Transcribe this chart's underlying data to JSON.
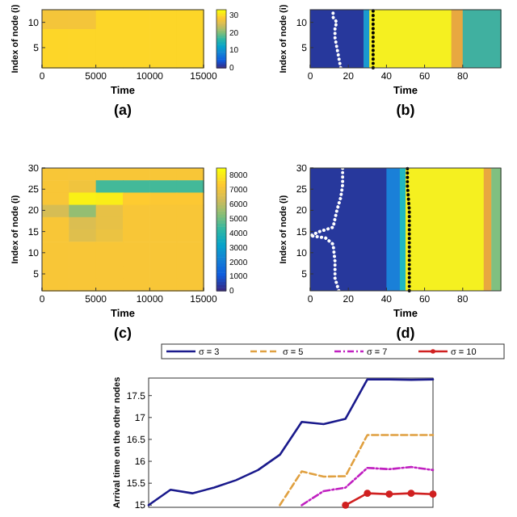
{
  "chart_data": [
    {
      "type": "heatmap",
      "xlabel": "Time",
      "ylabel": "Index of node (i)",
      "annotations": [
        "(a)"
      ],
      "x": [
        1250,
        3750,
        6250,
        8750,
        11250,
        13750
      ],
      "y": [
        10.583,
        6.75,
        2.917
      ],
      "xlim": [
        0,
        15000
      ],
      "xticks": [
        0,
        5000,
        10000,
        15000
      ],
      "ylim": [
        1,
        12.5
      ],
      "yticks": [
        5,
        10
      ],
      "clim": [
        0,
        33
      ],
      "cticks": [
        0,
        10,
        20,
        30
      ],
      "cells": [
        [
          28,
          28,
          30,
          30,
          30,
          30
        ],
        [
          30,
          30,
          30,
          30,
          30,
          30
        ],
        [
          30,
          30,
          30,
          30,
          30,
          30
        ]
      ]
    },
    {
      "type": "line",
      "xlabel": "Time",
      "ylabel": "Index of node (i)",
      "annotations": [
        "(b)"
      ],
      "xlim": [
        0,
        100
      ],
      "xticks": [
        0,
        20,
        40,
        60,
        80
      ],
      "ylim": [
        1,
        12.5
      ],
      "yticks": [
        5,
        10
      ],
      "bands": [
        {
          "axis": "x",
          "from": 0,
          "to": 28,
          "color": "#27389c"
        },
        {
          "axis": "x",
          "from": 28,
          "to": 31,
          "color": "#1a9ad0"
        },
        {
          "axis": "x",
          "from": 31,
          "to": 74,
          "color": "#f5f020"
        },
        {
          "axis": "x",
          "from": 74,
          "to": 80,
          "color": "#e8a840"
        },
        {
          "axis": "x",
          "from": 80,
          "to": 100,
          "color": "#40b0a0"
        }
      ],
      "series": [
        {
          "type": "line",
          "color": "#ffffff",
          "line_style": "dotted",
          "x": [
            16,
            15,
            14,
            13,
            13,
            14,
            12,
            12,
            12
          ],
          "values": [
            1,
            3,
            5,
            7,
            9,
            10,
            11,
            12,
            12.5
          ]
        },
        {
          "type": "line",
          "color": "#000000",
          "line_style": "dotted",
          "x": [
            33,
            33
          ],
          "values": [
            1,
            12.5
          ]
        }
      ]
    },
    {
      "type": "heatmap",
      "xlabel": "Time",
      "ylabel": "Index of node (i)",
      "annotations": [
        "(c)"
      ],
      "x": [
        1250,
        3750,
        6250,
        8750,
        11250,
        13750
      ],
      "y": [
        28.55,
        25.65,
        22.75,
        19.85,
        16.95,
        14.05,
        11.15,
        8.25,
        5.35,
        2.45
      ],
      "xlim": [
        0,
        15000
      ],
      "xticks": [
        0,
        5000,
        10000,
        15000
      ],
      "ylim": [
        1,
        30
      ],
      "yticks": [
        5,
        10,
        15,
        20,
        25,
        30
      ],
      "clim": [
        0,
        8500
      ],
      "cticks": [
        0,
        1000,
        2000,
        3000,
        4000,
        5000,
        6000,
        7000,
        8000
      ],
      "cells": [
        [
          7300,
          7300,
          7300,
          7300,
          7300,
          7300
        ],
        [
          7300,
          7100,
          4500,
          4500,
          4500,
          4500
        ],
        [
          7300,
          8300,
          8200,
          7500,
          7400,
          7400
        ],
        [
          6500,
          5500,
          6900,
          7300,
          7300,
          7300
        ],
        [
          7300,
          6600,
          6900,
          7300,
          7300,
          7300
        ],
        [
          7300,
          6700,
          7000,
          7300,
          7300,
          7300
        ],
        [
          7300,
          7300,
          7300,
          7300,
          7300,
          7300
        ],
        [
          7300,
          7300,
          7300,
          7300,
          7300,
          7300
        ],
        [
          7300,
          7300,
          7300,
          7300,
          7300,
          7300
        ],
        [
          7300,
          7300,
          7300,
          7300,
          7300,
          7300
        ]
      ]
    },
    {
      "type": "line",
      "xlabel": "Time",
      "ylabel": "Index of node (i)",
      "annotations": [
        "(d)"
      ],
      "xlim": [
        0,
        100
      ],
      "xticks": [
        0,
        20,
        40,
        60,
        80
      ],
      "ylim": [
        1,
        30
      ],
      "yticks": [
        5,
        10,
        15,
        20,
        25,
        30
      ],
      "bands": [
        {
          "axis": "x",
          "from": 0,
          "to": 40,
          "color": "#27389c"
        },
        {
          "axis": "x",
          "from": 40,
          "to": 47,
          "color": "#1a80d8"
        },
        {
          "axis": "x",
          "from": 47,
          "to": 50,
          "color": "#20b8c0"
        },
        {
          "axis": "x",
          "from": 50,
          "to": 91,
          "color": "#f5f020"
        },
        {
          "axis": "x",
          "from": 91,
          "to": 95,
          "color": "#e8a840"
        },
        {
          "axis": "x",
          "from": 95,
          "to": 100,
          "color": "#80c080"
        }
      ],
      "series": [
        {
          "type": "line",
          "color": "#ffffff",
          "line_style": "dotted",
          "x": [
            15,
            13,
            13,
            12,
            8,
            0,
            5,
            12,
            14,
            16,
            17,
            17
          ],
          "values": [
            1,
            4,
            8,
            12,
            13.5,
            14,
            15,
            16,
            20,
            23,
            26,
            30
          ]
        },
        {
          "type": "line",
          "color": "#000000",
          "line_style": "dotted",
          "x": [
            52,
            52,
            51,
            51
          ],
          "values": [
            1,
            20,
            26,
            30
          ]
        }
      ]
    },
    {
      "type": "line",
      "ylabel": "Arrival time on the other nodes",
      "legend": "top",
      "tick_labels": "y",
      "categories": [
        null,
        null,
        null,
        null,
        null,
        null,
        null,
        null,
        null,
        null,
        null,
        null,
        null,
        null
      ],
      "ylim": [
        14.95,
        17.9
      ],
      "yticks": [
        15,
        15.5,
        16,
        16.5,
        17,
        17.5
      ],
      "series": [
        {
          "name": "σ = 3",
          "color": "#1a1a8c",
          "line_style": "solid",
          "values": [
            15.0,
            15.35,
            15.27,
            15.4,
            15.57,
            15.8,
            16.15,
            16.9,
            16.85,
            16.97,
            17.87,
            17.87,
            17.86,
            17.87
          ]
        },
        {
          "name": "σ = 5",
          "color": "#e0a040",
          "line_style": "dashed",
          "values": [
            null,
            null,
            null,
            null,
            null,
            null,
            15.0,
            15.77,
            15.65,
            15.66,
            16.6,
            16.6,
            16.6,
            16.6
          ]
        },
        {
          "name": "σ = 7",
          "color": "#c020c0",
          "line_style": "dashdot",
          "values": [
            null,
            null,
            null,
            null,
            null,
            null,
            null,
            15.0,
            15.32,
            15.4,
            15.85,
            15.82,
            15.87,
            15.8
          ]
        },
        {
          "name": "σ = 10",
          "color": "#d02020",
          "line_style": "solid",
          "marker": "circle",
          "values": [
            null,
            null,
            null,
            null,
            null,
            null,
            null,
            null,
            null,
            15.0,
            15.27,
            15.25,
            15.27,
            15.25
          ]
        }
      ]
    }
  ]
}
